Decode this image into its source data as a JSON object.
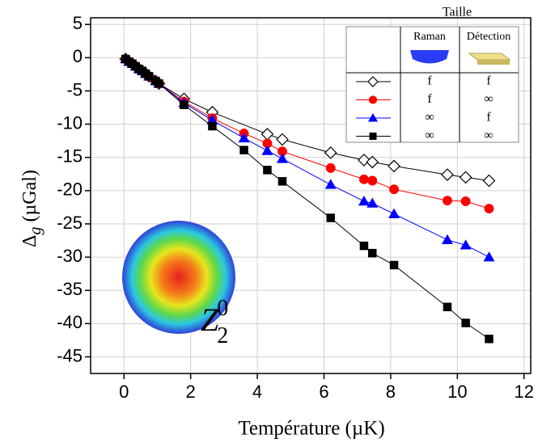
{
  "chart_data": {
    "type": "line",
    "xlabel": "Température (µK)",
    "ylabel": {
      "symbol": "Δ",
      "sub": "g",
      "unit": "(µGal)"
    },
    "xlim": [
      -1,
      12.2
    ],
    "xticks": [
      0,
      2,
      4,
      6,
      8,
      10,
      12
    ],
    "ylim": [
      -47.5,
      6
    ],
    "yticks": [
      5,
      0,
      -5,
      -10,
      -15,
      -20,
      -25,
      -30,
      -35,
      -40,
      -45
    ],
    "grid": true,
    "legend": {
      "title": "Taille",
      "columns": [
        "Raman",
        "Détection"
      ]
    },
    "annotation": {
      "base": "Z",
      "sub": "2",
      "sup": "0"
    },
    "series": [
      {
        "marker": "diamond",
        "color": "#000000",
        "cells": [
          "f",
          "f"
        ],
        "x": [
          0.05,
          0.15,
          0.25,
          0.35,
          0.45,
          0.55,
          0.65,
          0.75,
          0.95,
          1.05,
          1.8,
          2.65,
          4.3,
          4.75,
          6.2,
          7.2,
          7.45,
          8.1,
          9.7,
          10.25,
          10.95
        ],
        "values": [
          -0.2,
          -0.6,
          -0.9,
          -1.3,
          -1.7,
          -2.0,
          -2.4,
          -2.8,
          -3.5,
          -3.9,
          -6.2,
          -8.2,
          -11.5,
          -12.3,
          -14.3,
          -15.4,
          -15.7,
          -16.3,
          -17.6,
          -18.0,
          -18.5
        ]
      },
      {
        "marker": "circle",
        "color": "#ff0000",
        "cells": [
          "f",
          "∞"
        ],
        "x": [
          0.05,
          0.15,
          0.25,
          0.35,
          0.45,
          0.55,
          0.65,
          0.75,
          0.95,
          1.05,
          1.8,
          2.65,
          3.6,
          4.3,
          4.75,
          6.2,
          7.2,
          7.45,
          8.1,
          9.7,
          10.25,
          10.95
        ],
        "values": [
          -0.2,
          -0.6,
          -0.9,
          -1.3,
          -1.7,
          -2.0,
          -2.4,
          -2.8,
          -3.5,
          -3.9,
          -6.6,
          -9.1,
          -11.4,
          -12.9,
          -14.1,
          -16.6,
          -18.3,
          -18.5,
          -19.8,
          -21.5,
          -21.6,
          -22.7
        ]
      },
      {
        "marker": "triangle",
        "color": "#0000ff",
        "cells": [
          "∞",
          "f"
        ],
        "x": [
          0.05,
          0.15,
          0.25,
          0.35,
          0.45,
          0.55,
          0.65,
          0.75,
          0.95,
          1.05,
          1.8,
          2.65,
          3.6,
          4.3,
          4.75,
          6.2,
          7.2,
          7.45,
          8.1,
          9.7,
          10.25,
          10.95
        ],
        "values": [
          -0.2,
          -0.6,
          -0.9,
          -1.3,
          -1.7,
          -2.0,
          -2.4,
          -2.8,
          -3.5,
          -3.9,
          -6.8,
          -9.4,
          -12.1,
          -14.0,
          -15.2,
          -19.1,
          -21.6,
          -21.9,
          -23.5,
          -27.4,
          -28.2,
          -30.0
        ]
      },
      {
        "marker": "square",
        "color": "#000000",
        "cells": [
          "∞",
          "∞"
        ],
        "x": [
          0.05,
          0.15,
          0.25,
          0.35,
          0.45,
          0.55,
          0.65,
          0.75,
          0.95,
          1.05,
          1.8,
          2.65,
          3.6,
          4.3,
          4.75,
          6.2,
          7.2,
          7.45,
          8.1,
          9.7,
          10.25,
          10.95
        ],
        "values": [
          -0.2,
          -0.6,
          -0.9,
          -1.3,
          -1.7,
          -2.0,
          -2.4,
          -2.8,
          -3.5,
          -3.9,
          -7.1,
          -10.3,
          -13.9,
          -16.9,
          -18.6,
          -24.1,
          -28.3,
          -29.4,
          -31.2,
          -37.5,
          -39.9,
          -42.3
        ]
      }
    ]
  }
}
